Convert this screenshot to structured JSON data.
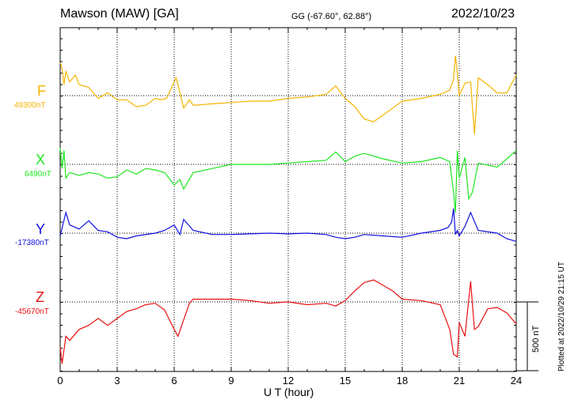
{
  "header": {
    "station": "Mawson (MAW)  [GA]",
    "coords": "GG (-67.60°,  62.88°)",
    "date": "2022/10/23",
    "plotted": "Plotted at 2022/10/29 21:15 UT"
  },
  "components": [
    {
      "name": "F",
      "baseline": "49300nT",
      "color": "#f5b400"
    },
    {
      "name": "X",
      "baseline": "6490nT",
      "color": "#1ee61e"
    },
    {
      "name": "Y",
      "baseline": "-17380nT",
      "color": "#1010e0"
    },
    {
      "name": "Z",
      "baseline": "-45670nT",
      "color": "#e81010"
    }
  ],
  "chart_data": {
    "type": "line",
    "title": "Mawson (MAW)  [GA]",
    "xlabel": "U T (hour)",
    "xlim": [
      0,
      24
    ],
    "xticks": [
      "0",
      "3",
      "6",
      "9",
      "12",
      "15",
      "18",
      "21",
      "24"
    ],
    "grid": true,
    "scale_bar": "500 nT",
    "series": [
      {
        "name": "F",
        "baseline_nT": 49300,
        "points": [
          [
            0,
            240
          ],
          [
            0.1,
            200
          ],
          [
            0.2,
            80
          ],
          [
            0.3,
            180
          ],
          [
            0.5,
            100
          ],
          [
            0.8,
            150
          ],
          [
            1,
            80
          ],
          [
            1.5,
            60
          ],
          [
            2,
            -20
          ],
          [
            2.5,
            20
          ],
          [
            3,
            -30
          ],
          [
            3.5,
            -30
          ],
          [
            4,
            -80
          ],
          [
            4.5,
            -70
          ],
          [
            5,
            -20
          ],
          [
            5.3,
            -30
          ],
          [
            5.6,
            -20
          ],
          [
            5.9,
            70
          ],
          [
            6.1,
            130
          ],
          [
            6.3,
            20
          ],
          [
            6.5,
            -90
          ],
          [
            6.8,
            -30
          ],
          [
            7,
            -70
          ],
          [
            8,
            -60
          ],
          [
            9,
            -50
          ],
          [
            10,
            -40
          ],
          [
            11,
            -40
          ],
          [
            12,
            -20
          ],
          [
            13,
            -10
          ],
          [
            14,
            10
          ],
          [
            14.5,
            70
          ],
          [
            15,
            -20
          ],
          [
            15.5,
            -80
          ],
          [
            16,
            -170
          ],
          [
            16.5,
            -190
          ],
          [
            17,
            -140
          ],
          [
            17.5,
            -90
          ],
          [
            18,
            -40
          ],
          [
            19,
            -20
          ],
          [
            20,
            10
          ],
          [
            20.5,
            40
          ],
          [
            20.7,
            120
          ],
          [
            20.8,
            290
          ],
          [
            20.9,
            170
          ],
          [
            21,
            0
          ],
          [
            21.3,
            90
          ],
          [
            21.6,
            100
          ],
          [
            21.8,
            -280
          ],
          [
            22,
            130
          ],
          [
            22.5,
            80
          ],
          [
            23,
            20
          ],
          [
            23.5,
            20
          ],
          [
            24,
            150
          ]
        ]
      },
      {
        "name": "X",
        "baseline_nT": 6490,
        "points": [
          [
            0,
            120
          ],
          [
            0.1,
            -30
          ],
          [
            0.2,
            100
          ],
          [
            0.3,
            -100
          ],
          [
            0.5,
            -60
          ],
          [
            1,
            -80
          ],
          [
            1.5,
            -60
          ],
          [
            2,
            -70
          ],
          [
            2.5,
            -100
          ],
          [
            3,
            -90
          ],
          [
            3.5,
            -40
          ],
          [
            4,
            -70
          ],
          [
            4.5,
            -30
          ],
          [
            5,
            -40
          ],
          [
            5.5,
            -60
          ],
          [
            6,
            -150
          ],
          [
            6.3,
            -110
          ],
          [
            6.5,
            -180
          ],
          [
            7,
            -60
          ],
          [
            8,
            -30
          ],
          [
            9,
            0
          ],
          [
            10,
            0
          ],
          [
            11,
            0
          ],
          [
            12,
            10
          ],
          [
            13,
            20
          ],
          [
            14,
            30
          ],
          [
            14.5,
            90
          ],
          [
            15,
            20
          ],
          [
            15.5,
            60
          ],
          [
            16,
            80
          ],
          [
            17,
            40
          ],
          [
            18,
            10
          ],
          [
            19,
            20
          ],
          [
            20,
            50
          ],
          [
            20.5,
            20
          ],
          [
            20.7,
            -200
          ],
          [
            20.8,
            -350
          ],
          [
            20.9,
            100
          ],
          [
            21,
            -100
          ],
          [
            21.3,
            50
          ],
          [
            21.5,
            -250
          ],
          [
            21.7,
            -200
          ],
          [
            22,
            10
          ],
          [
            23,
            -20
          ],
          [
            24,
            100
          ]
        ]
      },
      {
        "name": "Y",
        "baseline_nT": -17380,
        "points": [
          [
            0,
            -20
          ],
          [
            0.3,
            150
          ],
          [
            0.5,
            60
          ],
          [
            1,
            30
          ],
          [
            1.5,
            90
          ],
          [
            2,
            20
          ],
          [
            2.5,
            10
          ],
          [
            3,
            -30
          ],
          [
            3.5,
            -40
          ],
          [
            4,
            -20
          ],
          [
            5,
            0
          ],
          [
            5.5,
            20
          ],
          [
            6,
            60
          ],
          [
            6.3,
            -10
          ],
          [
            6.5,
            100
          ],
          [
            7,
            20
          ],
          [
            8,
            -10
          ],
          [
            9,
            -10
          ],
          [
            10,
            -5
          ],
          [
            11,
            0
          ],
          [
            12,
            -5
          ],
          [
            13,
            0
          ],
          [
            14,
            -10
          ],
          [
            14.5,
            -30
          ],
          [
            15,
            -40
          ],
          [
            15.5,
            -30
          ],
          [
            16,
            -10
          ],
          [
            17,
            -20
          ],
          [
            18,
            -30
          ],
          [
            19,
            0
          ],
          [
            20,
            20
          ],
          [
            20.4,
            40
          ],
          [
            20.6,
            80
          ],
          [
            20.7,
            180
          ],
          [
            20.8,
            -10
          ],
          [
            20.9,
            20
          ],
          [
            21,
            -20
          ],
          [
            21.3,
            50
          ],
          [
            21.6,
            150
          ],
          [
            22,
            20
          ],
          [
            23,
            0
          ],
          [
            23.5,
            -40
          ],
          [
            24,
            -60
          ]
        ]
      },
      {
        "name": "Z",
        "baseline_nT": -45670,
        "points": [
          [
            0,
            -330
          ],
          [
            0.1,
            -450
          ],
          [
            0.3,
            -250
          ],
          [
            0.5,
            -280
          ],
          [
            1,
            -200
          ],
          [
            1.5,
            -170
          ],
          [
            2,
            -120
          ],
          [
            2.5,
            -170
          ],
          [
            3,
            -120
          ],
          [
            3.5,
            -70
          ],
          [
            4,
            -50
          ],
          [
            4.5,
            -20
          ],
          [
            5,
            -10
          ],
          [
            5.5,
            -60
          ],
          [
            6,
            -200
          ],
          [
            6.2,
            -250
          ],
          [
            6.5,
            -130
          ],
          [
            6.8,
            -10
          ],
          [
            7,
            20
          ],
          [
            8,
            20
          ],
          [
            9,
            20
          ],
          [
            10,
            10
          ],
          [
            11,
            -10
          ],
          [
            12,
            0
          ],
          [
            13,
            -20
          ],
          [
            14,
            -10
          ],
          [
            14.5,
            -30
          ],
          [
            15,
            10
          ],
          [
            15.5,
            80
          ],
          [
            16,
            140
          ],
          [
            16.5,
            160
          ],
          [
            17,
            120
          ],
          [
            17.5,
            80
          ],
          [
            18,
            20
          ],
          [
            19,
            10
          ],
          [
            20,
            -20
          ],
          [
            20.5,
            -200
          ],
          [
            20.7,
            -380
          ],
          [
            20.9,
            -400
          ],
          [
            21,
            -150
          ],
          [
            21.3,
            -250
          ],
          [
            21.6,
            150
          ],
          [
            21.8,
            -200
          ],
          [
            22,
            -180
          ],
          [
            22.5,
            -50
          ],
          [
            23,
            -40
          ],
          [
            23.5,
            -80
          ],
          [
            24,
            -160
          ]
        ]
      }
    ]
  }
}
